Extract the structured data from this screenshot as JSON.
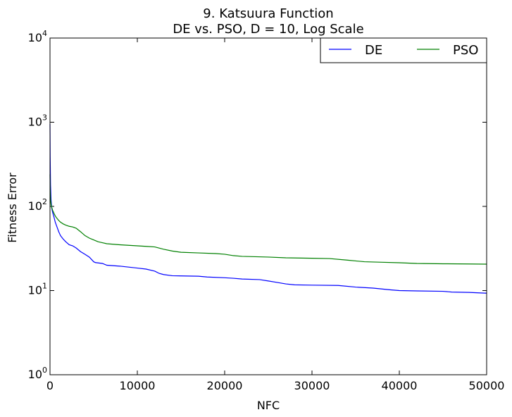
{
  "chart_data": {
    "type": "line",
    "title": "9.   Katsuura Function",
    "subtitle": "DE vs. PSO, D = 10, Log Scale",
    "xlabel": "NFC",
    "ylabel": "Fitness Error",
    "xlim": [
      0,
      50000
    ],
    "ylim": [
      1,
      10000
    ],
    "yscale": "log",
    "grid": false,
    "legend_position": "top-right",
    "x_ticks": [
      {
        "value": 0,
        "label": "0"
      },
      {
        "value": 10000,
        "label": "10000"
      },
      {
        "value": 20000,
        "label": "20000"
      },
      {
        "value": 30000,
        "label": "30000"
      },
      {
        "value": 40000,
        "label": "40000"
      },
      {
        "value": 50000,
        "label": "50000"
      }
    ],
    "y_ticks": [
      {
        "value": 1,
        "base": "10",
        "exp": "0"
      },
      {
        "value": 10,
        "base": "10",
        "exp": "1"
      },
      {
        "value": 100,
        "base": "10",
        "exp": "2"
      },
      {
        "value": 1000,
        "base": "10",
        "exp": "3"
      },
      {
        "value": 10000,
        "base": "10",
        "exp": "4"
      }
    ],
    "series": [
      {
        "name": "DE",
        "color": "#0000ff",
        "x": [
          0,
          20,
          60,
          120,
          200,
          300,
          450,
          600,
          800,
          1000,
          1200,
          1500,
          1800,
          2200,
          2600,
          3000,
          3500,
          4000,
          4500,
          5000,
          5200,
          6000,
          6500,
          8000,
          9000,
          10000,
          11000,
          12000,
          12500,
          13000,
          14000,
          17000,
          18000,
          20000,
          21000,
          22000,
          24000,
          25000,
          26000,
          27000,
          28000,
          30000,
          33000,
          35000,
          37000,
          39000,
          40000,
          42000,
          45000,
          46000,
          48000,
          50000
        ],
        "y": [
          950,
          400,
          180,
          120,
          95,
          85,
          75,
          65,
          57,
          50,
          45,
          41,
          38,
          35,
          34,
          32,
          29,
          27,
          25,
          22,
          21.5,
          21,
          20,
          19.5,
          19,
          18.5,
          18,
          17,
          16,
          15.5,
          15,
          14.8,
          14.5,
          14.2,
          14,
          13.7,
          13.5,
          13,
          12.5,
          12,
          11.7,
          11.6,
          11.5,
          11,
          10.7,
          10.2,
          10,
          9.9,
          9.8,
          9.6,
          9.5,
          9.3
        ]
      },
      {
        "name": "PSO",
        "color": "#008000",
        "x": [
          0,
          20,
          60,
          120,
          200,
          300,
          450,
          600,
          800,
          1000,
          1200,
          1500,
          1800,
          2200,
          2600,
          3000,
          3500,
          4000,
          4500,
          5000,
          5500,
          6000,
          6500,
          8000,
          9000,
          10000,
          11000,
          12000,
          13000,
          14000,
          15000,
          17000,
          19000,
          20000,
          21000,
          22000,
          25000,
          27000,
          30000,
          32000,
          34000,
          36000,
          38000,
          40000,
          42000,
          45000,
          48000,
          50000
        ],
        "y": [
          240,
          160,
          120,
          105,
          97,
          90,
          83,
          77,
          72,
          68,
          65,
          62,
          60,
          58,
          57,
          55,
          50,
          45,
          42,
          40,
          38,
          37,
          36,
          35,
          34.5,
          34,
          33.5,
          33,
          31,
          29.5,
          28.5,
          28,
          27.5,
          27,
          26,
          25.5,
          25,
          24.5,
          24.2,
          24,
          23,
          22,
          21.7,
          21.4,
          21,
          20.8,
          20.7,
          20.6
        ]
      }
    ]
  }
}
